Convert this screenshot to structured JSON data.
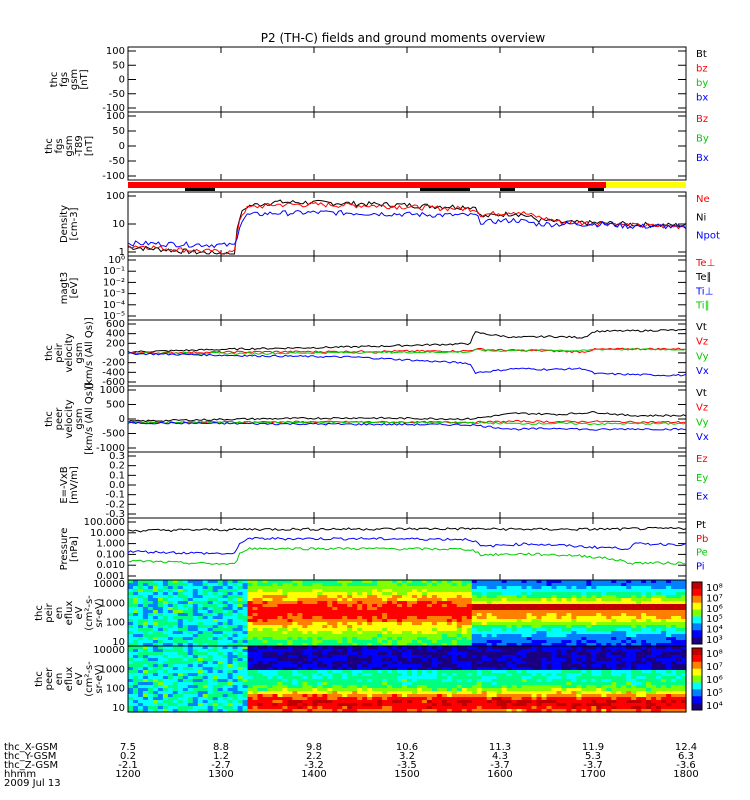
{
  "title": "P2 (TH-C) fields and ground moments overview",
  "colors": {
    "black": "#000000",
    "red": "#ff0000",
    "green": "#00cc00",
    "blue": "#0000ff",
    "yellow": "#ffff00",
    "gray": "#d0d0d0"
  },
  "chart_data": [
    {
      "id": "fgs",
      "type": "line",
      "ylabel": [
        "thc",
        "fgs",
        "gsm",
        "[nT]"
      ],
      "yticks": [
        "100",
        "50",
        "0",
        "-50",
        "-100"
      ],
      "legend": [
        {
          "name": "Bt",
          "color": "#000000"
        },
        {
          "name": "bz",
          "color": "#ff0000"
        },
        {
          "name": "by",
          "color": "#00cc00"
        },
        {
          "name": "bx",
          "color": "#0000ff"
        }
      ],
      "ylim": [
        -100,
        100
      ],
      "series": []
    },
    {
      "id": "fgs_t89",
      "type": "line",
      "ylabel": [
        "thc",
        "fgs",
        "gsm",
        "-T89",
        "[nT]"
      ],
      "yticks": [
        "100",
        "50",
        "0",
        "-50",
        "-100"
      ],
      "legend": [
        {
          "name": "Bz",
          "color": "#ff0000"
        },
        {
          "name": "By",
          "color": "#00cc00"
        },
        {
          "name": "Bx",
          "color": "#0000ff"
        }
      ],
      "ylim": [
        -100,
        100
      ],
      "series": []
    },
    {
      "id": "density",
      "type": "line",
      "log": true,
      "ylabel": [
        "Density",
        "[cm-3]"
      ],
      "yticks": [
        "100",
        "10",
        "1"
      ],
      "legend": [
        {
          "name": "Ne",
          "color": "#ff0000"
        },
        {
          "name": "Ni",
          "color": "#000000"
        },
        {
          "name": "Npot",
          "color": "#0000ff"
        }
      ],
      "ylim": [
        0.5,
        200
      ],
      "x": [
        7.5,
        7.8,
        8.1,
        8.45,
        8.55,
        8.8,
        9.2,
        9.8,
        10.2,
        10.55,
        10.6,
        10.9,
        11.1,
        11.3,
        11.7,
        11.9,
        12.2,
        12.4
      ],
      "series": [
        {
          "name": "Ni",
          "values": [
            1.0,
            0.8,
            0.6,
            0.5,
            60,
            90,
            85,
            70,
            60,
            55,
            20,
            30,
            15,
            12,
            11,
            10,
            9,
            9
          ]
        },
        {
          "name": "Ne",
          "values": [
            1.2,
            0.9,
            0.7,
            0.6,
            50,
            70,
            70,
            60,
            50,
            45,
            25,
            35,
            20,
            12,
            11,
            9,
            8,
            8
          ]
        },
        {
          "name": "Npot",
          "values": [
            1.5,
            1.4,
            1.3,
            1.2,
            25,
            30,
            32,
            28,
            25,
            24,
            12,
            15,
            10,
            10,
            10,
            8,
            8,
            7
          ]
        }
      ]
    },
    {
      "id": "magt3",
      "type": "line",
      "ylabel": [
        "magt3",
        "[eV]"
      ],
      "yticks": [
        "10⁰",
        "10⁻¹",
        "10⁻²",
        "10⁻³",
        "10⁻⁴",
        "10⁻⁵"
      ],
      "legend": [
        {
          "name": "Te⊥",
          "color": "#ff0000"
        },
        {
          "name": "Te∥",
          "color": "#000000"
        },
        {
          "name": "Ti⊥",
          "color": "#0000ff"
        },
        {
          "name": "Ti∥",
          "color": "#00cc00"
        }
      ],
      "series": []
    },
    {
      "id": "peir_vel",
      "type": "line",
      "ylabel": [
        "thc",
        "peir",
        "velocity",
        "gsm",
        "[km/s (All Qs)]"
      ],
      "yticks": [
        "600",
        "400",
        "200",
        "0",
        "-200",
        "-400",
        "-600"
      ],
      "legend": [
        {
          "name": "Vt",
          "color": "#000000"
        },
        {
          "name": "Vz",
          "color": "#ff0000"
        },
        {
          "name": "Vy",
          "color": "#00cc00"
        },
        {
          "name": "Vx",
          "color": "#0000ff"
        }
      ],
      "ylim": [
        -600,
        600
      ],
      "x": [
        7.5,
        8.5,
        9.5,
        10.5,
        10.55,
        10.7,
        10.9,
        11.2,
        11.5,
        11.6,
        12.0,
        12.2
      ],
      "series": [
        {
          "name": "Vt",
          "values": [
            20,
            80,
            120,
            180,
            400,
            350,
            300,
            320,
            300,
            420,
            430,
            440
          ]
        },
        {
          "name": "Vz",
          "values": [
            0,
            20,
            30,
            40,
            80,
            60,
            50,
            40,
            20,
            70,
            80,
            80
          ]
        },
        {
          "name": "Vy",
          "values": [
            0,
            -10,
            10,
            20,
            60,
            40,
            50,
            60,
            40,
            70,
            70,
            70
          ]
        },
        {
          "name": "Vx",
          "values": [
            -10,
            -50,
            -80,
            -200,
            -380,
            -350,
            -300,
            -320,
            -300,
            -400,
            -420,
            -430
          ]
        }
      ]
    },
    {
      "id": "peer_vel",
      "type": "line",
      "ylabel": [
        "thc",
        "peer",
        "velocity",
        "gsm",
        "[km/s (All Qs)]"
      ],
      "yticks": [
        "1000",
        "500",
        "0",
        "-500",
        "-1000"
      ],
      "legend": [
        {
          "name": "Vt",
          "color": "#000000"
        },
        {
          "name": "Vz",
          "color": "#ff0000"
        },
        {
          "name": "Vy",
          "color": "#00cc00"
        },
        {
          "name": "Vx",
          "color": "#0000ff"
        }
      ],
      "ylim": [
        -1200,
        1500
      ],
      "x": [
        7.5,
        8.5,
        9.5,
        10.5,
        10.9,
        11.3,
        11.6,
        11.9,
        12.4
      ],
      "series": [
        {
          "name": "Vt",
          "values": [
            50,
            150,
            200,
            150,
            400,
            350,
            450,
            300,
            300
          ]
        },
        {
          "name": "Vz",
          "values": [
            0,
            20,
            20,
            0,
            50,
            30,
            40,
            20,
            10
          ]
        },
        {
          "name": "Vy",
          "values": [
            0,
            10,
            10,
            0,
            -50,
            -40,
            -60,
            -50,
            -50
          ]
        },
        {
          "name": "Vx",
          "values": [
            -20,
            -50,
            -80,
            -100,
            -300,
            -250,
            -320,
            -280,
            -300
          ]
        }
      ]
    },
    {
      "id": "efield",
      "type": "line",
      "ylabel": [
        "E=-VxB",
        "[mV/m]"
      ],
      "yticks": [
        "0.3",
        "0.2",
        "0.1",
        "0.0",
        "-0.1",
        "-0.2",
        "-0.3"
      ],
      "legend": [
        {
          "name": "Ez",
          "color": "#ff0000"
        },
        {
          "name": "Ey",
          "color": "#00cc00"
        },
        {
          "name": "Ex",
          "color": "#0000ff"
        }
      ],
      "series": []
    },
    {
      "id": "pressure",
      "type": "line",
      "log": true,
      "ylabel": [
        "Pressure",
        "[nPa]"
      ],
      "yticks": [
        "100.000",
        "10.000",
        "1.000",
        "0.100",
        "0.010",
        "0.001"
      ],
      "legend": [
        {
          "name": "Pt",
          "color": "#000000"
        },
        {
          "name": "Pb",
          "color": "#ff0000"
        },
        {
          "name": "Pe",
          "color": "#00cc00"
        },
        {
          "name": "Pi",
          "color": "#0000ff"
        }
      ],
      "ylim": [
        0.001,
        100
      ],
      "x": [
        7.5,
        8.0,
        8.45,
        8.55,
        9.5,
        10.5,
        10.6,
        11.0,
        11.5,
        11.9,
        11.95,
        12.4
      ],
      "series": [
        {
          "name": "Pt",
          "values": [
            12,
            14,
            15,
            16,
            17,
            18,
            17,
            16,
            16,
            17,
            18,
            19
          ]
        },
        {
          "name": "Pi",
          "values": [
            0.2,
            0.15,
            0.12,
            2.5,
            2.5,
            2.2,
            0.5,
            0.9,
            0.5,
            0.35,
            0.9,
            0.8
          ]
        },
        {
          "name": "Pe",
          "values": [
            0.03,
            0.02,
            0.015,
            0.35,
            0.35,
            0.3,
            0.1,
            0.12,
            0.08,
            0.02,
            0.02,
            0.02
          ]
        }
      ]
    },
    {
      "id": "peir_eflux",
      "type": "heatmap",
      "ylabel": [
        "thc",
        "peir",
        "en",
        "eflux",
        "eV",
        "(cm²-s-",
        "sr-eV)"
      ],
      "yticks": [
        "10000",
        "1000",
        "100",
        "10"
      ],
      "cbar_ticks": [
        "10⁸",
        "10⁷",
        "10⁶",
        "10⁵",
        "10⁴",
        "10³"
      ]
    },
    {
      "id": "peer_eflux",
      "type": "heatmap",
      "ylabel": [
        "thc",
        "peer",
        "en",
        "eflux",
        "eV",
        "(cm²-s-",
        "sr-eV)"
      ],
      "yticks": [
        "10000",
        "1000",
        "100",
        "10"
      ],
      "cbar_ticks": [
        "10⁸",
        "10⁷",
        "10⁶",
        "10⁵",
        "10⁴"
      ]
    }
  ],
  "xaxis": {
    "rows": [
      {
        "label": "thc_X-GSM",
        "values": [
          "7.5",
          "8.8",
          "9.8",
          "10.6",
          "11.3",
          "11.9",
          "12.4"
        ]
      },
      {
        "label": "thc_Y-GSM",
        "values": [
          "0.2",
          "1.2",
          "2.2",
          "3.2",
          "4.3",
          "5.3",
          "6.3"
        ]
      },
      {
        "label": "thc_Z-GSM",
        "values": [
          "-2.1",
          "-2.7",
          "-3.2",
          "-3.5",
          "-3.7",
          "-3.7",
          "-3.6"
        ]
      },
      {
        "label": "hhmm",
        "values": [
          "1200",
          "1300",
          "1400",
          "1500",
          "1600",
          "1700",
          "1800"
        ]
      }
    ],
    "date": "2009 Jul 13"
  }
}
